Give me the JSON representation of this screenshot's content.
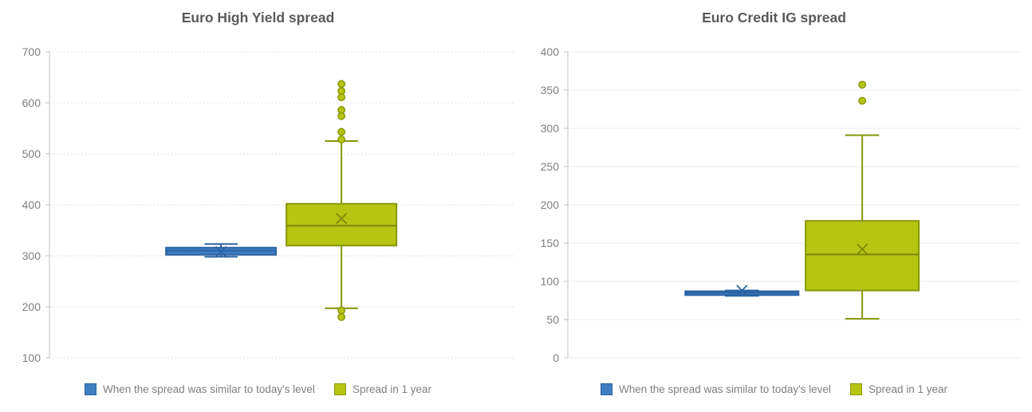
{
  "legend": {
    "items": [
      {
        "label": "When the spread was similar to today's level",
        "color": "#3e7ec0",
        "border": "#2b63a4"
      },
      {
        "label": "Spread in 1 year",
        "color": "#b6c511",
        "border": "#88970b"
      }
    ]
  },
  "chart_data": [
    {
      "type": "boxplot",
      "title": "Euro High Yield spread",
      "ylim": [
        100,
        700
      ],
      "yticks": [
        700,
        600,
        500,
        400,
        300,
        200,
        100
      ],
      "grid": {
        "on": true,
        "style": "dotted",
        "color": "#d9d9d9"
      },
      "axis_color": "#c0c0c0",
      "legend_position": "bottom",
      "series": [
        {
          "name": "When the spread was similar to today's level",
          "fill": "#3e7ec0",
          "border": "#2b63a4",
          "line": "#2b63a4",
          "x_frac": 0.369,
          "whisker_low": 298,
          "q1": 302,
          "median": 310,
          "q3": 316,
          "whisker_high": 323,
          "mean": 308,
          "outliers": []
        },
        {
          "name": "Spread in 1 year",
          "fill": "#b6c511",
          "border": "#88970b",
          "line": "#798707",
          "x_frac": 0.628,
          "whisker_low": 197,
          "q1": 320,
          "median": 359,
          "q3": 402,
          "whisker_high": 525,
          "mean": 373,
          "outliers": [
            637,
            623,
            611,
            586,
            574,
            543,
            528,
            193,
            180
          ]
        }
      ]
    },
    {
      "type": "boxplot",
      "title": "Euro Credit IG spread",
      "ylim": [
        0,
        400
      ],
      "yticks": [
        400,
        350,
        300,
        250,
        200,
        150,
        100,
        50,
        0
      ],
      "grid": {
        "on": true,
        "style": "solid",
        "color": "#ececec"
      },
      "axis_color": "#c0c0c0",
      "legend_position": "bottom",
      "series": [
        {
          "name": "When the spread was similar to today's level",
          "fill": "#3e7ec0",
          "border": "#2b63a4",
          "line": "#2b63a4",
          "x_frac": 0.385,
          "whisker_low": 81,
          "q1": 82,
          "median": 85,
          "q3": 87,
          "whisker_high": 88,
          "mean": 88,
          "outliers": []
        },
        {
          "name": "Spread in 1 year",
          "fill": "#b6c511",
          "border": "#88970b",
          "line": "#798707",
          "x_frac": 0.651,
          "whisker_low": 51,
          "q1": 88,
          "median": 135,
          "q3": 179,
          "whisker_high": 291,
          "mean": 142,
          "outliers": [
            357,
            336
          ]
        }
      ]
    }
  ]
}
